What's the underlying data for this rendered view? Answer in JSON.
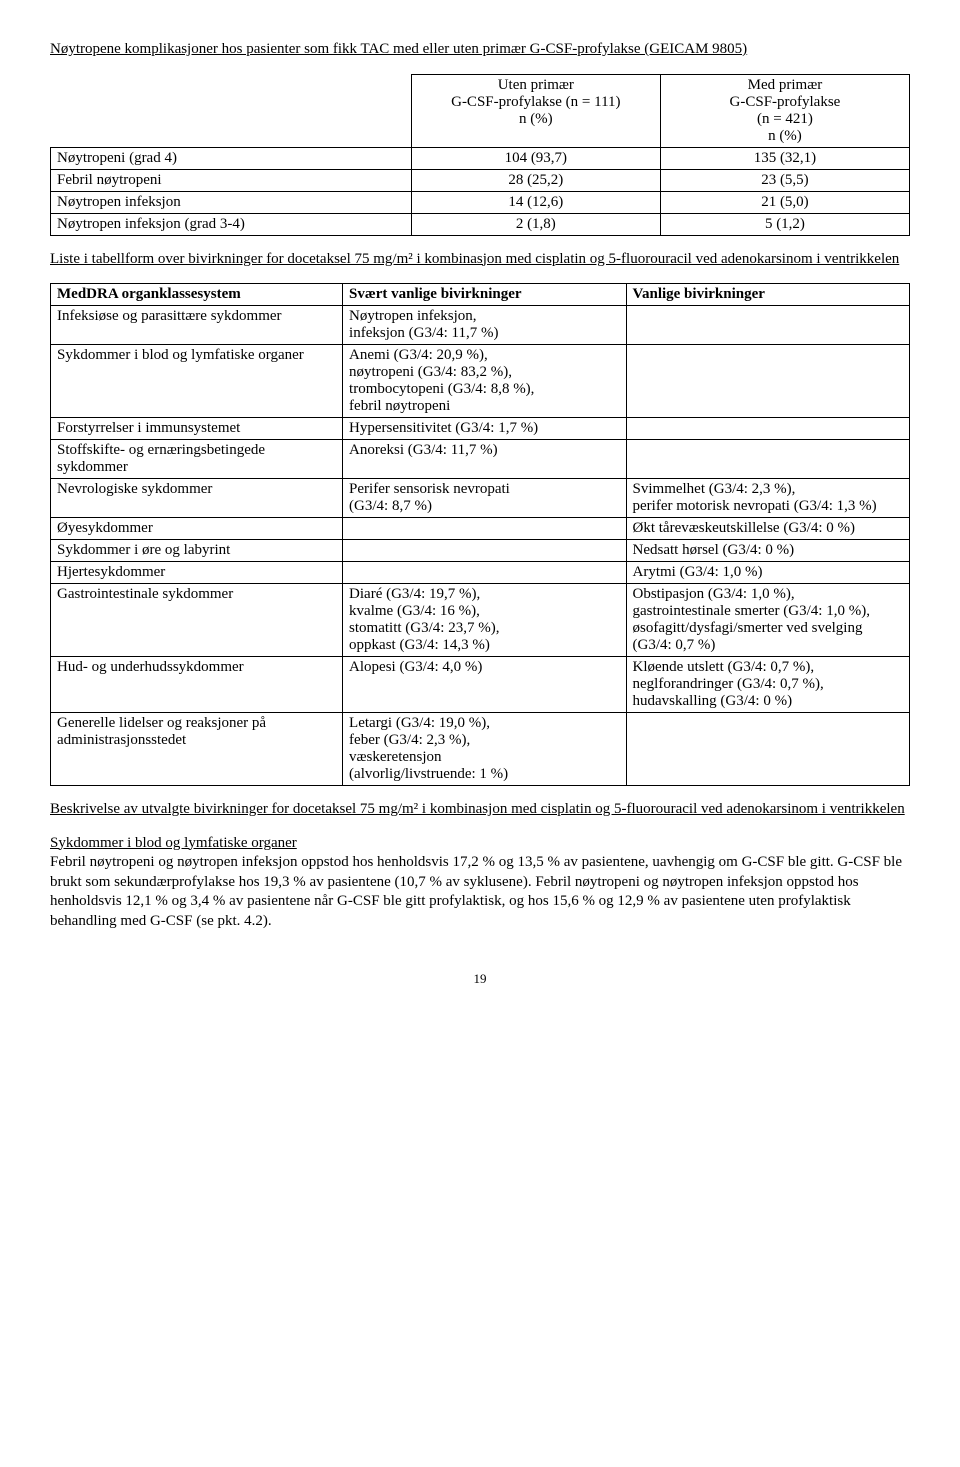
{
  "title1": "Nøytropene komplikasjoner hos pasienter som fikk TAC med eller uten primær G-CSF-profylakse (GEICAM 9805)",
  "table1": {
    "header": [
      "",
      "Uten primær\nG-CSF-profylakse (n = 111)\nn (%)",
      "Med primær\nG-CSF-profylakse\n(n = 421)\nn (%)"
    ],
    "rows": [
      [
        "Nøytropeni (grad 4)",
        "104 (93,7)",
        "135 (32,1)"
      ],
      [
        "Febril nøytropeni",
        "28 (25,2)",
        "23 (5,5)"
      ],
      [
        "Nøytropen infeksjon",
        "14 (12,6)",
        "21 (5,0)"
      ],
      [
        "Nøytropen infeksjon (grad 3-4)",
        "2 (1,8)",
        "5 (1,2)"
      ]
    ]
  },
  "title2": "Liste i tabellform over bivirkninger for docetaksel 75 mg/m² i kombinasjon med cisplatin og 5-fluorouracil ved adenokarsinom i ventrikkelen",
  "table2": {
    "header": [
      "MedDRA organklassesystem",
      "Svært vanlige bivirkninger",
      "Vanlige bivirkninger"
    ],
    "rows": [
      [
        "Infeksiøse og parasittære sykdommer",
        "Nøytropen infeksjon,\ninfeksjon (G3/4: 11,7 %)",
        ""
      ],
      [
        "Sykdommer i blod og lymfatiske organer",
        "Anemi (G3/4: 20,9 %),\nnøytropeni (G3/4: 83,2 %),\ntrombocytopeni (G3/4: 8,8 %),\nfebril nøytropeni",
        ""
      ],
      [
        "Forstyrrelser i immunsystemet",
        "Hypersensitivitet (G3/4: 1,7 %)",
        ""
      ],
      [
        "Stoffskifte- og ernæringsbetingede sykdommer",
        "Anoreksi (G3/4: 11,7 %)",
        ""
      ],
      [
        "Nevrologiske sykdommer",
        "Perifer sensorisk nevropati\n(G3/4: 8,7 %)",
        "Svimmelhet (G3/4: 2,3 %),\nperifer motorisk nevropati (G3/4: 1,3 %)"
      ],
      [
        "Øyesykdommer",
        "",
        "Økt tårevæskeutskillelse (G3/4: 0 %)"
      ],
      [
        "Sykdommer i øre og labyrint",
        "",
        "Nedsatt hørsel (G3/4: 0 %)"
      ],
      [
        "Hjertesykdommer",
        "",
        "Arytmi (G3/4: 1,0 %)"
      ],
      [
        "Gastrointestinale sykdommer",
        "Diaré (G3/4: 19,7 %),\nkvalme (G3/4: 16 %),\nstomatitt (G3/4: 23,7 %),\noppkast (G3/4: 14,3 %)",
        "Obstipasjon (G3/4: 1,0 %),\ngastrointestinale smerter (G3/4: 1,0 %),\nøsofagitt/dysfagi/smerter ved svelging (G3/4: 0,7 %)"
      ],
      [
        "Hud- og underhudssykdommer",
        "Alopesi (G3/4: 4,0 %)",
        "Kløende utslett (G3/4: 0,7 %),\nneglforandringer (G3/4: 0,7 %),\nhudavskalling (G3/4: 0 %)"
      ],
      [
        "Generelle lidelser og reaksjoner på administrasjonsstedet",
        "Letargi (G3/4: 19,0 %),\nfeber (G3/4: 2,3 %),\nvæskeretensjon\n(alvorlig/livstruende: 1 %)",
        ""
      ]
    ]
  },
  "title3": "Beskrivelse av utvalgte bivirkninger for docetaksel 75 mg/m² i kombinasjon med cisplatin og 5-fluorouracil ved adenokarsinom i ventrikkelen",
  "sec_heading": "Sykdommer i blod og lymfatiske organer",
  "body1": "Febril nøytropeni og nøytropen infeksjon oppstod hos henholdsvis 17,2 % og 13,5 % av pasientene, uavhengig om G-CSF ble gitt. G-CSF ble brukt som sekundærprofylakse hos 19,3 % av pasientene (10,7 % av syklusene). Febril nøytropeni og nøytropen infeksjon oppstod hos henholdsvis 12,1 % og 3,4 % av pasientene når G-CSF ble gitt profylaktisk, og hos 15,6 % og 12,9 % av pasientene uten profylaktisk behandling med G-CSF (se pkt. 4.2).",
  "page": "19"
}
